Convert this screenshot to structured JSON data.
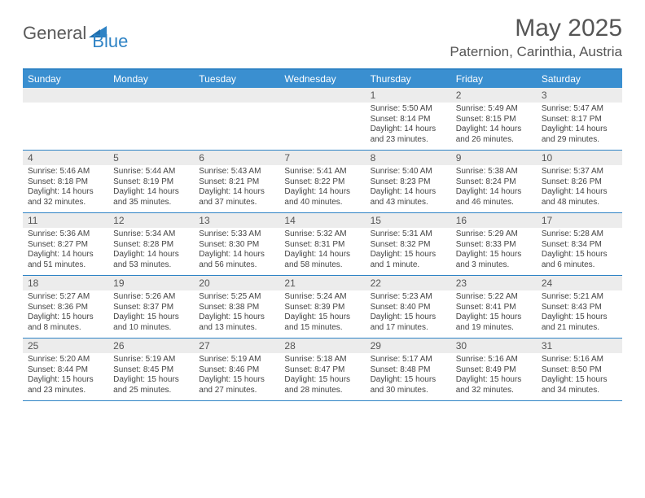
{
  "brand": {
    "general": "General",
    "blue": "Blue"
  },
  "title": "May 2025",
  "location": "Paternion, Carinthia, Austria",
  "colors": {
    "header_bg": "#3a8fd0",
    "border": "#2f83c5",
    "daynum_bg": "#ececec",
    "text_dark": "#444444",
    "text_mid": "#555555",
    "logo_gray": "#5a5a5a",
    "logo_blue": "#2f83c5",
    "white": "#ffffff"
  },
  "dow": [
    "Sunday",
    "Monday",
    "Tuesday",
    "Wednesday",
    "Thursday",
    "Friday",
    "Saturday"
  ],
  "weeks": [
    [
      {
        "n": "",
        "sr": "",
        "ss": "",
        "dl": ""
      },
      {
        "n": "",
        "sr": "",
        "ss": "",
        "dl": ""
      },
      {
        "n": "",
        "sr": "",
        "ss": "",
        "dl": ""
      },
      {
        "n": "",
        "sr": "",
        "ss": "",
        "dl": ""
      },
      {
        "n": "1",
        "sr": "Sunrise: 5:50 AM",
        "ss": "Sunset: 8:14 PM",
        "dl": "Daylight: 14 hours and 23 minutes."
      },
      {
        "n": "2",
        "sr": "Sunrise: 5:49 AM",
        "ss": "Sunset: 8:15 PM",
        "dl": "Daylight: 14 hours and 26 minutes."
      },
      {
        "n": "3",
        "sr": "Sunrise: 5:47 AM",
        "ss": "Sunset: 8:17 PM",
        "dl": "Daylight: 14 hours and 29 minutes."
      }
    ],
    [
      {
        "n": "4",
        "sr": "Sunrise: 5:46 AM",
        "ss": "Sunset: 8:18 PM",
        "dl": "Daylight: 14 hours and 32 minutes."
      },
      {
        "n": "5",
        "sr": "Sunrise: 5:44 AM",
        "ss": "Sunset: 8:19 PM",
        "dl": "Daylight: 14 hours and 35 minutes."
      },
      {
        "n": "6",
        "sr": "Sunrise: 5:43 AM",
        "ss": "Sunset: 8:21 PM",
        "dl": "Daylight: 14 hours and 37 minutes."
      },
      {
        "n": "7",
        "sr": "Sunrise: 5:41 AM",
        "ss": "Sunset: 8:22 PM",
        "dl": "Daylight: 14 hours and 40 minutes."
      },
      {
        "n": "8",
        "sr": "Sunrise: 5:40 AM",
        "ss": "Sunset: 8:23 PM",
        "dl": "Daylight: 14 hours and 43 minutes."
      },
      {
        "n": "9",
        "sr": "Sunrise: 5:38 AM",
        "ss": "Sunset: 8:24 PM",
        "dl": "Daylight: 14 hours and 46 minutes."
      },
      {
        "n": "10",
        "sr": "Sunrise: 5:37 AM",
        "ss": "Sunset: 8:26 PM",
        "dl": "Daylight: 14 hours and 48 minutes."
      }
    ],
    [
      {
        "n": "11",
        "sr": "Sunrise: 5:36 AM",
        "ss": "Sunset: 8:27 PM",
        "dl": "Daylight: 14 hours and 51 minutes."
      },
      {
        "n": "12",
        "sr": "Sunrise: 5:34 AM",
        "ss": "Sunset: 8:28 PM",
        "dl": "Daylight: 14 hours and 53 minutes."
      },
      {
        "n": "13",
        "sr": "Sunrise: 5:33 AM",
        "ss": "Sunset: 8:30 PM",
        "dl": "Daylight: 14 hours and 56 minutes."
      },
      {
        "n": "14",
        "sr": "Sunrise: 5:32 AM",
        "ss": "Sunset: 8:31 PM",
        "dl": "Daylight: 14 hours and 58 minutes."
      },
      {
        "n": "15",
        "sr": "Sunrise: 5:31 AM",
        "ss": "Sunset: 8:32 PM",
        "dl": "Daylight: 15 hours and 1 minute."
      },
      {
        "n": "16",
        "sr": "Sunrise: 5:29 AM",
        "ss": "Sunset: 8:33 PM",
        "dl": "Daylight: 15 hours and 3 minutes."
      },
      {
        "n": "17",
        "sr": "Sunrise: 5:28 AM",
        "ss": "Sunset: 8:34 PM",
        "dl": "Daylight: 15 hours and 6 minutes."
      }
    ],
    [
      {
        "n": "18",
        "sr": "Sunrise: 5:27 AM",
        "ss": "Sunset: 8:36 PM",
        "dl": "Daylight: 15 hours and 8 minutes."
      },
      {
        "n": "19",
        "sr": "Sunrise: 5:26 AM",
        "ss": "Sunset: 8:37 PM",
        "dl": "Daylight: 15 hours and 10 minutes."
      },
      {
        "n": "20",
        "sr": "Sunrise: 5:25 AM",
        "ss": "Sunset: 8:38 PM",
        "dl": "Daylight: 15 hours and 13 minutes."
      },
      {
        "n": "21",
        "sr": "Sunrise: 5:24 AM",
        "ss": "Sunset: 8:39 PM",
        "dl": "Daylight: 15 hours and 15 minutes."
      },
      {
        "n": "22",
        "sr": "Sunrise: 5:23 AM",
        "ss": "Sunset: 8:40 PM",
        "dl": "Daylight: 15 hours and 17 minutes."
      },
      {
        "n": "23",
        "sr": "Sunrise: 5:22 AM",
        "ss": "Sunset: 8:41 PM",
        "dl": "Daylight: 15 hours and 19 minutes."
      },
      {
        "n": "24",
        "sr": "Sunrise: 5:21 AM",
        "ss": "Sunset: 8:43 PM",
        "dl": "Daylight: 15 hours and 21 minutes."
      }
    ],
    [
      {
        "n": "25",
        "sr": "Sunrise: 5:20 AM",
        "ss": "Sunset: 8:44 PM",
        "dl": "Daylight: 15 hours and 23 minutes."
      },
      {
        "n": "26",
        "sr": "Sunrise: 5:19 AM",
        "ss": "Sunset: 8:45 PM",
        "dl": "Daylight: 15 hours and 25 minutes."
      },
      {
        "n": "27",
        "sr": "Sunrise: 5:19 AM",
        "ss": "Sunset: 8:46 PM",
        "dl": "Daylight: 15 hours and 27 minutes."
      },
      {
        "n": "28",
        "sr": "Sunrise: 5:18 AM",
        "ss": "Sunset: 8:47 PM",
        "dl": "Daylight: 15 hours and 28 minutes."
      },
      {
        "n": "29",
        "sr": "Sunrise: 5:17 AM",
        "ss": "Sunset: 8:48 PM",
        "dl": "Daylight: 15 hours and 30 minutes."
      },
      {
        "n": "30",
        "sr": "Sunrise: 5:16 AM",
        "ss": "Sunset: 8:49 PM",
        "dl": "Daylight: 15 hours and 32 minutes."
      },
      {
        "n": "31",
        "sr": "Sunrise: 5:16 AM",
        "ss": "Sunset: 8:50 PM",
        "dl": "Daylight: 15 hours and 34 minutes."
      }
    ]
  ]
}
